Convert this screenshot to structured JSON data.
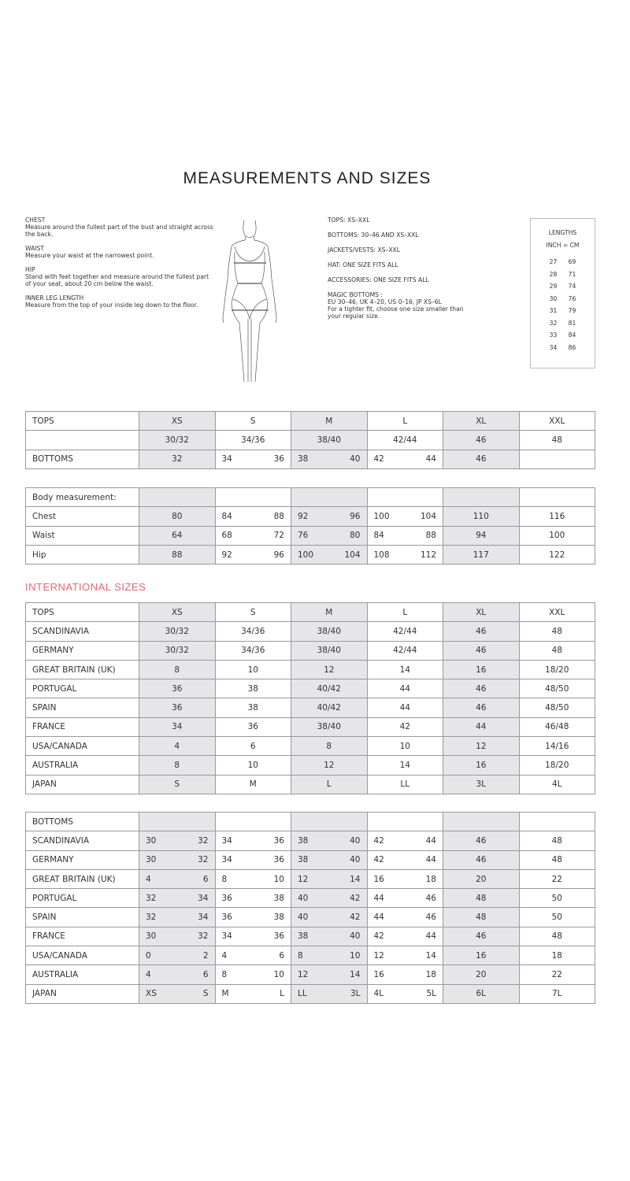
{
  "title": "MEASUREMENTS AND SIZES",
  "definitions": [
    {
      "heading": "CHEST",
      "text": "Measure around the fullest part of the bust and straight across the back."
    },
    {
      "heading": "WAIST",
      "text": "Measure your waist at the narrowest point."
    },
    {
      "heading": "HIP",
      "text": "Stand with feet together and measure around the fullest part of your seat, about 20 cm below the waist."
    },
    {
      "heading": "INNER LEG LENGTH",
      "text": "Measure from the top of your inside leg down to the floor."
    }
  ],
  "size_ranges": [
    "TOPS: XS–XXL",
    "BOTTOMS:  30–46 AND XS–XXL",
    "JACKETS/VESTS:  XS–XXL",
    "HAT: ONE SIZE FITS ALL",
    "ACCESSORIES:  ONE SIZE FITS ALL"
  ],
  "magic_bottoms": {
    "heading": "MAGIC BOTTOMS :",
    "line1": "EU 30–46, UK 4–20, US 0–16, JP XS–6L",
    "line2": "For a tighter fit, choose one size smaller than your regular size."
  },
  "lengths": {
    "title": "LENGTHS",
    "subtitle": "INCH = CM",
    "rows": [
      [
        "27",
        "69"
      ],
      [
        "28",
        "71"
      ],
      [
        "29",
        "74"
      ],
      [
        "30",
        "76"
      ],
      [
        "31",
        "79"
      ],
      [
        "32",
        "81"
      ],
      [
        "33",
        "84"
      ],
      [
        "34",
        "86"
      ]
    ]
  },
  "international_heading": "INTERNATIONAL SIZES",
  "shade_color": "#e6e6e9",
  "accent_color": "#e0677a",
  "tables": [
    {
      "rows": [
        [
          "TOPS",
          "XS",
          "S",
          "M",
          "L",
          "XL",
          "XXL"
        ],
        [
          "",
          "30/32",
          "34/36",
          "38/40",
          "42/44",
          "46",
          "48"
        ],
        [
          "BOTTOMS",
          "32",
          [
            "34",
            "36"
          ],
          [
            "38",
            "40"
          ],
          [
            "42",
            "44"
          ],
          "46",
          ""
        ]
      ]
    },
    {
      "rows": [
        [
          "Body measurement:",
          "",
          "",
          "",
          "",
          "",
          ""
        ],
        [
          "Chest",
          "80",
          [
            "84",
            "88"
          ],
          [
            "92",
            "96"
          ],
          [
            "100",
            "104"
          ],
          "110",
          "116"
        ],
        [
          "Waist",
          "64",
          [
            "68",
            "72"
          ],
          [
            "76",
            "80"
          ],
          [
            "84",
            "88"
          ],
          "94",
          "100"
        ],
        [
          "Hip",
          "88",
          [
            "92",
            "96"
          ],
          [
            "100",
            "104"
          ],
          [
            "108",
            "112"
          ],
          "117",
          "122"
        ]
      ]
    },
    {
      "rows": [
        [
          "TOPS",
          "XS",
          "S",
          "M",
          "L",
          "XL",
          "XXL"
        ],
        [
          "SCANDINAVIA",
          "30/32",
          "34/36",
          "38/40",
          "42/44",
          "46",
          "48"
        ],
        [
          "GERMANY",
          "30/32",
          "34/36",
          "38/40",
          "42/44",
          "46",
          "48"
        ],
        [
          "GREAT BRITAIN  (UK)",
          "8",
          "10",
          "12",
          "14",
          "16",
          "18/20"
        ],
        [
          "PORTUGAL",
          "36",
          "38",
          "40/42",
          "44",
          "46",
          "48/50"
        ],
        [
          "SPAIN",
          "36",
          "38",
          "40/42",
          "44",
          "46",
          "48/50"
        ],
        [
          "FRANCE",
          "34",
          "36",
          "38/40",
          "42",
          "44",
          "46/48"
        ],
        [
          "USA/CANADA",
          "4",
          "6",
          "8",
          "10",
          "12",
          "14/16"
        ],
        [
          "AUSTRALIA",
          "8",
          "10",
          "12",
          "14",
          "16",
          "18/20"
        ],
        [
          "JAPAN",
          "S",
          "M",
          "L",
          "LL",
          "3L",
          "4L"
        ]
      ]
    },
    {
      "rows": [
        [
          "BOTTOMS",
          "",
          "",
          "",
          "",
          "",
          ""
        ],
        [
          "SCANDINAVIA",
          [
            "30",
            "32"
          ],
          [
            "34",
            "36"
          ],
          [
            "38",
            "40"
          ],
          [
            "42",
            "44"
          ],
          "46",
          "48"
        ],
        [
          "GERMANY",
          [
            "30",
            "32"
          ],
          [
            "34",
            "36"
          ],
          [
            "38",
            "40"
          ],
          [
            "42",
            "44"
          ],
          "46",
          "48"
        ],
        [
          "GREAT BRITAIN  (UK)",
          [
            "4",
            "6"
          ],
          [
            "8",
            "10"
          ],
          [
            "12",
            "14"
          ],
          [
            "16",
            "18"
          ],
          "20",
          "22"
        ],
        [
          "PORTUGAL",
          [
            "32",
            "34"
          ],
          [
            "36",
            "38"
          ],
          [
            "40",
            "42"
          ],
          [
            "44",
            "46"
          ],
          "48",
          "50"
        ],
        [
          "SPAIN",
          [
            "32",
            "34"
          ],
          [
            "36",
            "38"
          ],
          [
            "40",
            "42"
          ],
          [
            "44",
            "46"
          ],
          "48",
          "50"
        ],
        [
          "FRANCE",
          [
            "30",
            "32"
          ],
          [
            "34",
            "36"
          ],
          [
            "38",
            "40"
          ],
          [
            "42",
            "44"
          ],
          "46",
          "48"
        ],
        [
          "USA/CANADA",
          [
            "0",
            "2"
          ],
          [
            "4",
            "6"
          ],
          [
            "8",
            "10"
          ],
          [
            "12",
            "14"
          ],
          "16",
          "18"
        ],
        [
          "AUSTRALIA",
          [
            "4",
            "6"
          ],
          [
            "8",
            "10"
          ],
          [
            "12",
            "14"
          ],
          [
            "16",
            "18"
          ],
          "20",
          "22"
        ],
        [
          "JAPAN",
          [
            "XS",
            "S"
          ],
          [
            "M",
            "L"
          ],
          [
            "LL",
            "3L"
          ],
          [
            "4L",
            "5L"
          ],
          "6L",
          "7L"
        ]
      ]
    }
  ]
}
